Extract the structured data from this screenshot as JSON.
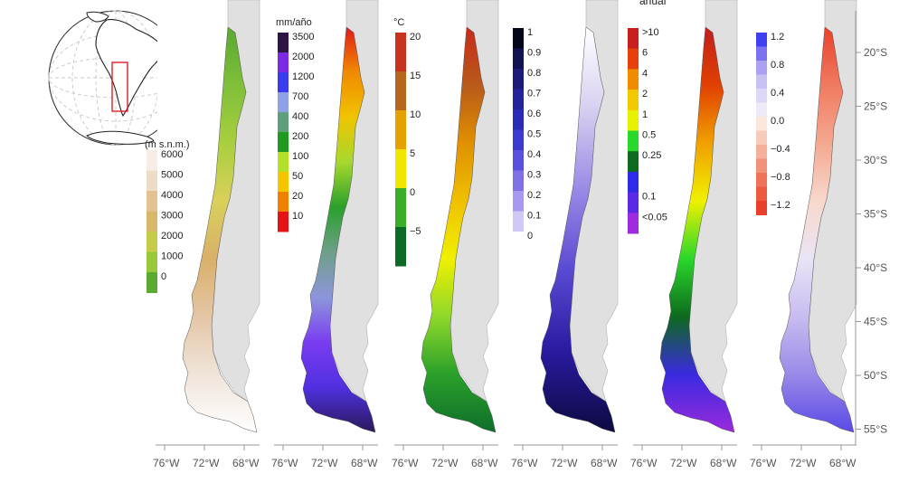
{
  "title_fragment": "anual",
  "inset": {
    "unit": "(m s.n.m.)"
  },
  "panels": [
    {
      "id": "elevation",
      "unit": "",
      "ramp": [
        "#5aa832",
        "#7fbf3a",
        "#a9cf3f",
        "#d9d05a",
        "#d9b06a",
        "#e4c6a5",
        "#f0e4da",
        "#ffffff"
      ],
      "legend": [
        {
          "label": "6000",
          "color": "#f6ede6"
        },
        {
          "label": "5000",
          "color": "#eedbc8"
        },
        {
          "label": "4000",
          "color": "#e3c294"
        },
        {
          "label": "3000",
          "color": "#d8b96a"
        },
        {
          "label": "2000",
          "color": "#c7cc4a"
        },
        {
          "label": "1000",
          "color": "#98c83c"
        },
        {
          "label": "0",
          "color": "#5bab33"
        }
      ]
    },
    {
      "id": "precipitation",
      "unit": "mm/año",
      "ramp": [
        "#e01a1a",
        "#f08a00",
        "#f0c400",
        "#a7d82e",
        "#2aa02a",
        "#6f9f8a",
        "#8c96dc",
        "#7a3cf0",
        "#5030e0",
        "#2a1a5a"
      ],
      "legend": [
        {
          "label": "3500",
          "color": "#2b1646"
        },
        {
          "label": "2000",
          "color": "#7a2ae0"
        },
        {
          "label": "1200",
          "color": "#3a3cf0"
        },
        {
          "label": "700",
          "color": "#8fa0e6"
        },
        {
          "label": "400",
          "color": "#5f9f7a"
        },
        {
          "label": "200",
          "color": "#1e9a1e"
        },
        {
          "label": "100",
          "color": "#b4e02a"
        },
        {
          "label": "50",
          "color": "#f6c400"
        },
        {
          "label": "20",
          "color": "#f08000"
        },
        {
          "label": "10",
          "color": "#e41414"
        }
      ]
    },
    {
      "id": "temperature",
      "unit": "°C",
      "ramp": [
        "#0f6e2a",
        "#2aa02a",
        "#8fd82a",
        "#f0f000",
        "#f0c000",
        "#e09000",
        "#b85a1a",
        "#c82a1a"
      ],
      "legend": [
        {
          "label": "20",
          "color": "#c8321e"
        },
        {
          "label": "15",
          "color": "#b8661e"
        },
        {
          "label": "10",
          "color": "#e6a000"
        },
        {
          "label": "5",
          "color": "#f2e600"
        },
        {
          "label": "0",
          "color": "#3aae2a"
        },
        {
          "label": "−5",
          "color": "#0c6a24"
        }
      ]
    },
    {
      "id": "index",
      "unit": "",
      "ramp": [
        "#ffffff",
        "#d8d0f0",
        "#9a8ae6",
        "#5a4ad2",
        "#2a1aa0",
        "#0c0a40"
      ],
      "legend": [
        {
          "label": "1",
          "color": "#06061a"
        },
        {
          "label": "0.9",
          "color": "#121250"
        },
        {
          "label": "0.8",
          "color": "#1c1c78"
        },
        {
          "label": "0.7",
          "color": "#24249a"
        },
        {
          "label": "0.6",
          "color": "#2a2ab8"
        },
        {
          "label": "0.5",
          "color": "#3a3ad0"
        },
        {
          "label": "0.4",
          "color": "#5a50e0"
        },
        {
          "label": "0.3",
          "color": "#8070e6"
        },
        {
          "label": "0.2",
          "color": "#a898ee"
        },
        {
          "label": "0.1",
          "color": "#d2c8f6"
        },
        {
          "label": "0",
          "color": "#ffffff"
        }
      ]
    },
    {
      "id": "ratio",
      "unit": "",
      "ramp": [
        "#9a2adc",
        "#3a2ae0",
        "#0e6a1e",
        "#2ad82a",
        "#f0f000",
        "#f0a000",
        "#e04000",
        "#c01e1e"
      ],
      "legend": [
        {
          "label": ">10",
          "color": "#c81e1e"
        },
        {
          "label": "6",
          "color": "#e8400a"
        },
        {
          "label": "4",
          "color": "#f08c00"
        },
        {
          "label": "2",
          "color": "#f2c800"
        },
        {
          "label": "1",
          "color": "#e6f000"
        },
        {
          "label": "0.5",
          "color": "#28d82a"
        },
        {
          "label": "0.25",
          "color": "#0e6a1e"
        },
        {
          "label": "",
          "color": "#2f2ae8"
        },
        {
          "label": "0.1",
          "color": "#5a2ae6"
        },
        {
          "label": "<0.05",
          "color": "#a02ae0"
        }
      ]
    },
    {
      "id": "change",
      "unit": "",
      "ramp": [
        "#e8402a",
        "#f07a60",
        "#f4a890",
        "#f8d8cc",
        "#eae4f6",
        "#c8bcf0",
        "#9a8ae8",
        "#5a4ae6"
      ],
      "legend": [
        {
          "label": "1.2",
          "color": "#4040f0"
        },
        {
          "label": "",
          "color": "#7a72ee"
        },
        {
          "label": "0.8",
          "color": "#aaa2f0"
        },
        {
          "label": "",
          "color": "#c8c2f4"
        },
        {
          "label": "0.4",
          "color": "#dcd8f6"
        },
        {
          "label": "",
          "color": "#efeaf6"
        },
        {
          "label": "0.0",
          "color": "#fbe6dc"
        },
        {
          "label": "",
          "color": "#f7cbba"
        },
        {
          "label": "−0.4",
          "color": "#f4b09a"
        },
        {
          "label": "",
          "color": "#f2927a"
        },
        {
          "label": "−0.8",
          "color": "#ef7358"
        },
        {
          "label": "",
          "color": "#ec5a40"
        },
        {
          "label": "−1.2",
          "color": "#e8402a"
        }
      ]
    }
  ],
  "x_ticks": [
    "76°W",
    "72°W",
    "68°W"
  ],
  "y_ticks": [
    "20°S",
    "25°S",
    "30°S",
    "35°S",
    "40°S",
    "45°S",
    "50°S",
    "55°S"
  ]
}
